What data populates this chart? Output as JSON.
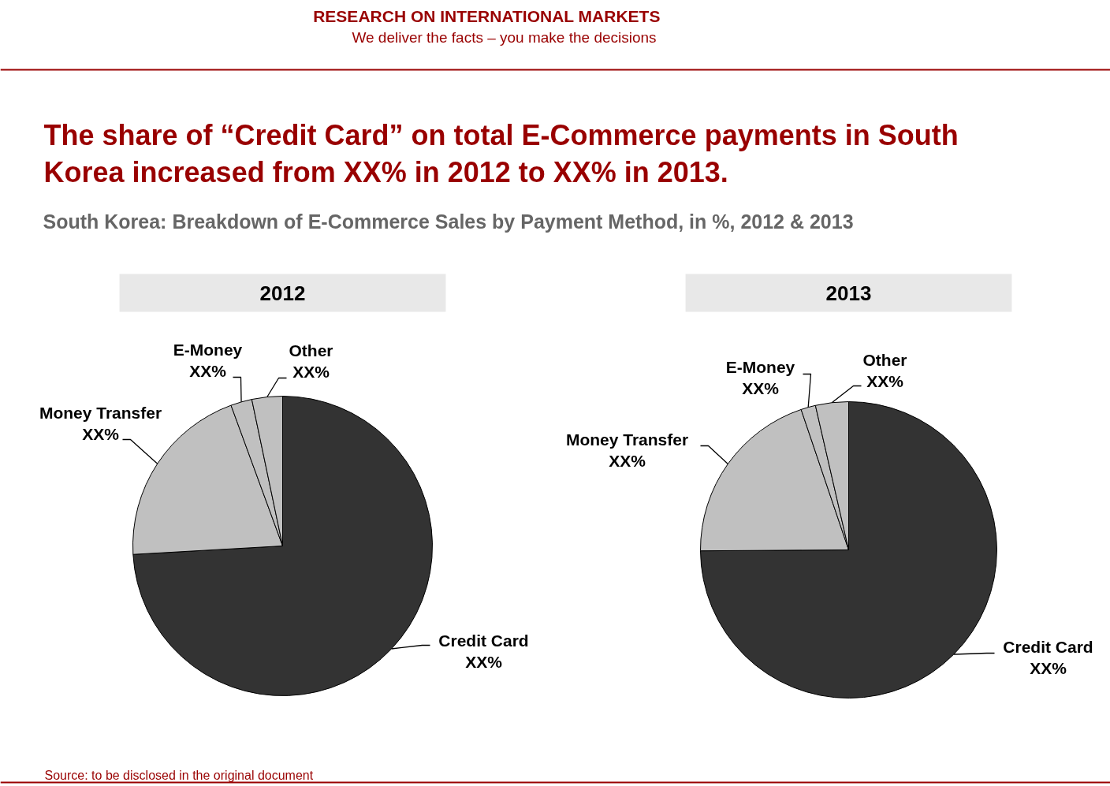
{
  "chart_data": [
    {
      "type": "other",
      "title": "The share of “Credit Card” on total E-Commerce payments in South Korea increased from XX% in 2012 to XX% in 2013.",
      "subtitle": "South Korea: Breakdown of E-Commerce Sales by Payment Method, in %, 2012 & 2013",
      "annotations": [
        "RESEARCH ON INTERNATIONAL MARKETS",
        "We deliver the facts – you make the decisions",
        "Source: to be disclosed in the original document"
      ]
    },
    {
      "type": "pie",
      "title": "2012",
      "categories": [
        "Credit Card",
        "Money Transfer",
        "E-Money",
        "Other"
      ],
      "values": [
        74.1,
        20.3,
        2.3,
        3.3
      ],
      "colors": [
        "#333333",
        "#c0c0c0",
        "#c0c0c0",
        "#c0c0c0"
      ],
      "value_labels": [
        "XX%",
        "XX%",
        "XX%",
        "XX%"
      ]
    },
    {
      "type": "pie",
      "title": "2013",
      "categories": [
        "Credit Card",
        "Money Transfer",
        "E-Money",
        "Other"
      ],
      "values": [
        74.9,
        19.9,
        1.6,
        3.6
      ],
      "colors": [
        "#333333",
        "#c0c0c0",
        "#c0c0c0",
        "#c0c0c0"
      ],
      "value_labels": [
        "XX%",
        "XX%",
        "XX%",
        "XX%"
      ]
    }
  ]
}
